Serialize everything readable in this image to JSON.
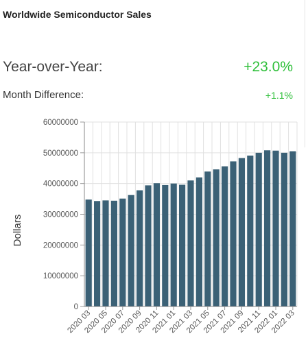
{
  "header": {
    "title": "Worldwide Semiconductor Sales"
  },
  "metrics": {
    "yoy_label": "Year-over-Year:",
    "yoy_value": "+23.0%",
    "month_diff_label": "Month Difference:",
    "month_diff_value": "+1.1%"
  },
  "colors": {
    "bar": "#3b6176",
    "positive": "#2fbf3a",
    "grid": "#e0e0e0"
  },
  "chart_data": {
    "type": "bar",
    "ylabel": "Dollars",
    "xlabel": "",
    "ylim": [
      0,
      60000000
    ],
    "yticks": [
      0,
      10000000,
      20000000,
      30000000,
      40000000,
      50000000,
      60000000
    ],
    "grid": true,
    "categories": [
      "2020 03",
      "2020 04",
      "2020 05",
      "2020 06",
      "2020 07",
      "2020 08",
      "2020 09",
      "2020 10",
      "2020 11",
      "2020 12",
      "2021 01",
      "2021 02",
      "2021 03",
      "2021 04",
      "2021 05",
      "2021 06",
      "2021 07",
      "2021 08",
      "2021 09",
      "2021 10",
      "2021 11",
      "2021 12",
      "2022 01",
      "2022 02",
      "2022 03"
    ],
    "tick_labels_shown": [
      "2020 03",
      "2020 05",
      "2020 07",
      "2020 09",
      "2020 11",
      "2021 01",
      "2021 03",
      "2021 05",
      "2021 07",
      "2021 09",
      "2021 11",
      "2022 01",
      "2022 03"
    ],
    "values": [
      34800000,
      34300000,
      34500000,
      34400000,
      35100000,
      36300000,
      37800000,
      39400000,
      40100000,
      39500000,
      40000000,
      39600000,
      41000000,
      42000000,
      43900000,
      44600000,
      45600000,
      47200000,
      48300000,
      49100000,
      50000000,
      50800000,
      50700000,
      50000000,
      50500000
    ]
  }
}
